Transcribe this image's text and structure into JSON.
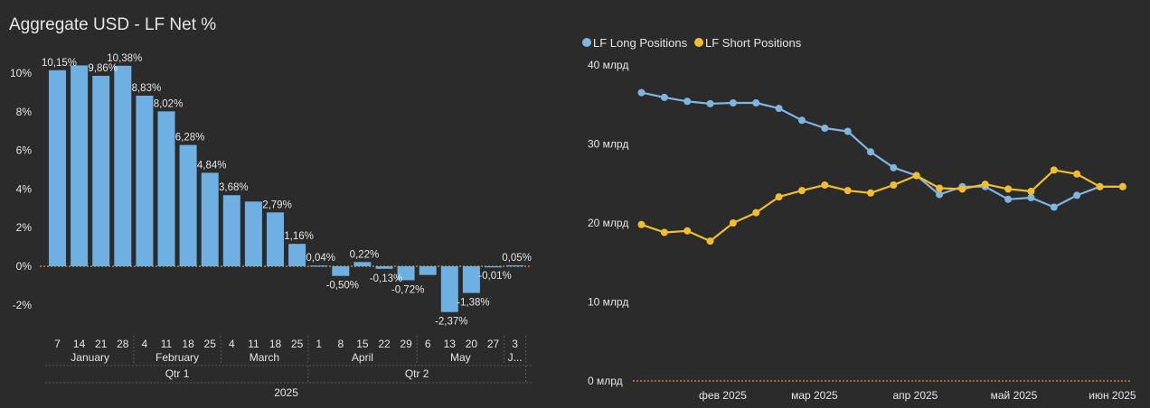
{
  "colors": {
    "background": "#2b2b2b",
    "bar": "#6fb0e3",
    "long": "#7fb6e0",
    "short": "#f0be2e",
    "zero_line": "#d4a03a",
    "text": "#e6e6e6",
    "muted": "#cfcfcf",
    "separator": "#5a5a5a"
  },
  "chart_data": [
    {
      "type": "bar",
      "title": "Aggregate USD - LF Net %",
      "xlabel": "",
      "ylabel": "",
      "ylim": [
        -3,
        10.8
      ],
      "yticks": [
        10,
        8,
        6,
        4,
        2,
        0,
        -2
      ],
      "ytick_labels": [
        "10%",
        "8%",
        "6%",
        "4%",
        "2%",
        "0%",
        "-2%"
      ],
      "categories": [
        "7",
        "14",
        "21",
        "28",
        "4",
        "11",
        "18",
        "25",
        "4",
        "11",
        "18",
        "25",
        "1",
        "8",
        "15",
        "22",
        "29",
        "6",
        "13",
        "20",
        "27",
        "3"
      ],
      "values": [
        10.15,
        10.4,
        9.86,
        10.38,
        8.83,
        8.02,
        6.28,
        4.84,
        3.68,
        3.35,
        2.79,
        1.16,
        0.04,
        -0.5,
        0.22,
        -0.13,
        -0.72,
        -0.45,
        -2.37,
        -1.38,
        -0.01,
        0.05
      ],
      "data_labels": [
        "10,15%",
        "",
        "9,86%",
        "10,38%",
        "8,83%",
        "8,02%",
        "6,28%",
        "4,84%",
        "3,68%",
        "",
        "2,79%",
        "1,16%",
        "0,04%",
        "-0,50%",
        "0,22%",
        "-0,13%",
        "-0,72%",
        "",
        "-2,37%",
        "-1,38%",
        "-0,01%",
        "0,05%"
      ],
      "months": [
        {
          "label": "January",
          "from": 0,
          "to": 3
        },
        {
          "label": "February",
          "from": 4,
          "to": 7
        },
        {
          "label": "March",
          "from": 8,
          "to": 11
        },
        {
          "label": "April",
          "from": 12,
          "to": 16
        },
        {
          "label": "May",
          "from": 17,
          "to": 20
        },
        {
          "label": "J...",
          "from": 21,
          "to": 21
        }
      ],
      "quarters": [
        {
          "label": "Qtr 1",
          "from": 0,
          "to": 11
        },
        {
          "label": "Qtr 2",
          "from": 12,
          "to": 21
        }
      ],
      "year": "2025"
    },
    {
      "type": "line",
      "title": "",
      "legend": "top-left",
      "ylim": [
        0,
        40
      ],
      "yticks": [
        40,
        30,
        20,
        10,
        0
      ],
      "ytick_labels": [
        "40 млрд",
        "30 млрд",
        "20 млрд",
        "10 млрд",
        "0 млрд"
      ],
      "x_tick_labels": [
        {
          "label": "фев 2025",
          "x": 3.55
        },
        {
          "label": "мар 2025",
          "x": 7.55
        },
        {
          "label": "апр 2025",
          "x": 11.95
        },
        {
          "label": "май 2025",
          "x": 16.25
        },
        {
          "label": "июн 2025",
          "x": 20.55
        }
      ],
      "xlim": [
        -0.5,
        21.6
      ],
      "series": [
        {
          "name": "LF Long Positions",
          "color": "#7fb6e0",
          "values": [
            36.5,
            35.9,
            35.4,
            35.1,
            35.2,
            35.2,
            34.5,
            33.0,
            32.0,
            31.6,
            29.0,
            27.0,
            26.0,
            23.6,
            24.6,
            24.6,
            23.0,
            23.2,
            22.0,
            23.5,
            24.6,
            24.6
          ]
        },
        {
          "name": "LF Short Positions",
          "color": "#f0be2e",
          "values": [
            19.8,
            18.8,
            19.0,
            17.7,
            20.0,
            21.3,
            23.3,
            24.1,
            24.8,
            24.1,
            23.8,
            24.8,
            26.0,
            24.4,
            24.3,
            24.9,
            24.3,
            24.0,
            26.7,
            26.2,
            24.6,
            24.6
          ]
        }
      ]
    }
  ]
}
